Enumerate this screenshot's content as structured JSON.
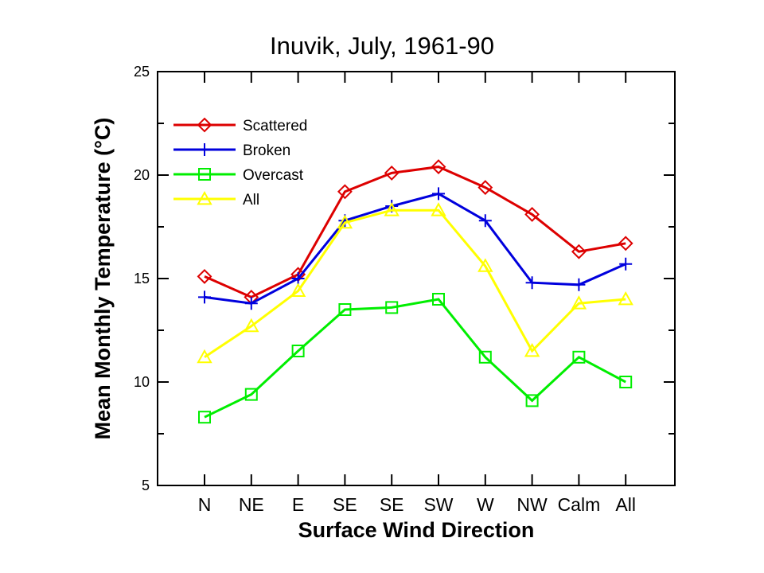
{
  "chart_data": {
    "type": "line",
    "title": "Inuvik, July, 1961-90",
    "xlabel": "Surface Wind Direction",
    "ylabel": "Mean Monthly Temperature (°C)",
    "ylim": [
      5,
      25
    ],
    "y_major_ticks": [
      5,
      10,
      15,
      20,
      25
    ],
    "y_minor_step": 2.5,
    "categories": [
      "N",
      "NE",
      "E",
      "SE",
      "SE",
      "SW",
      "W",
      "NW",
      "Calm",
      "All"
    ],
    "legend_position": "top-left",
    "grid": false,
    "series": [
      {
        "name": "Scattered",
        "color": "#dd0000",
        "marker": "diamond",
        "values": [
          15.1,
          14.1,
          15.2,
          19.2,
          20.1,
          20.4,
          19.4,
          18.1,
          16.3,
          16.7
        ]
      },
      {
        "name": "Broken",
        "color": "#0000dd",
        "marker": "plus",
        "values": [
          14.1,
          13.8,
          15.0,
          17.8,
          18.5,
          19.1,
          17.8,
          14.8,
          14.7,
          15.7
        ]
      },
      {
        "name": "Overcast",
        "color": "#00ee00",
        "marker": "square",
        "values": [
          8.3,
          9.4,
          11.5,
          13.5,
          13.6,
          14.0,
          11.2,
          9.1,
          11.2,
          10.0
        ]
      },
      {
        "name": "All",
        "color": "#ffff00",
        "marker": "triangle",
        "values": [
          11.2,
          12.7,
          14.4,
          17.7,
          18.3,
          18.3,
          15.6,
          11.5,
          13.8,
          14.0
        ]
      }
    ]
  }
}
